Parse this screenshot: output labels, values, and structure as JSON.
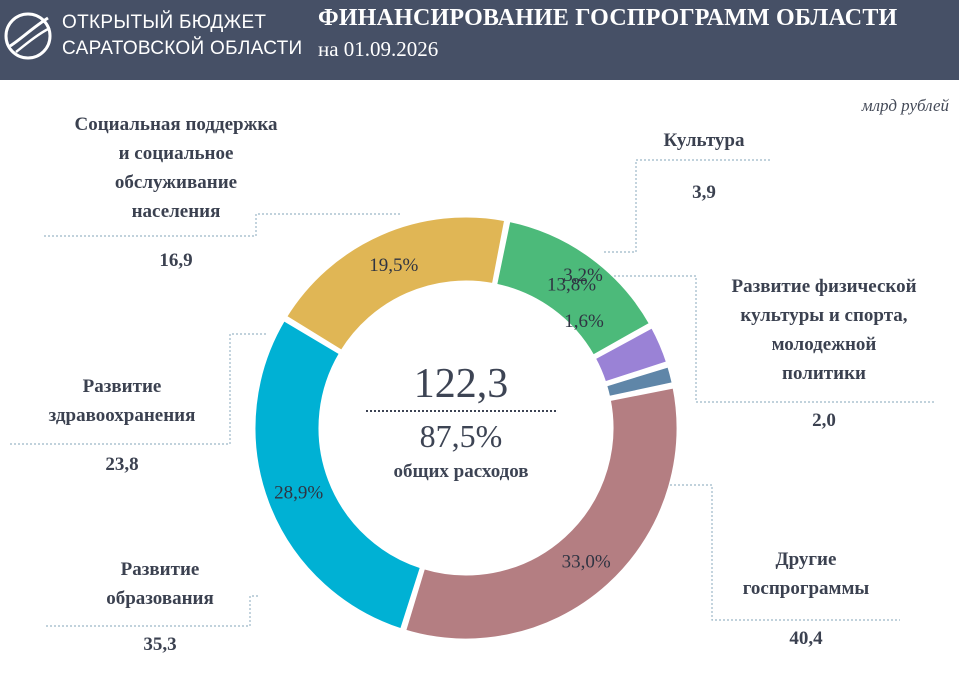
{
  "header": {
    "org_line1": "ОТКРЫТЫЙ БЮДЖЕТ",
    "org_line2": "САРАТОВСКОЙ ОБЛАСТИ",
    "title": "ФИНАНСИРОВАНИЕ ГОСПРОГРАММ ОБЛАСТИ",
    "date": "на 01.09.2026"
  },
  "units": "млрд рублей",
  "center": {
    "total": "122,3",
    "share": "87,5%",
    "caption": "общих расходов"
  },
  "colors": {
    "header_bg": "#465066",
    "leader": "#9cb8c8"
  },
  "chart_data": {
    "type": "donut",
    "units": "млрд рублей",
    "slices": [
      {
        "label": [
          "Культура"
        ],
        "value": 3.9,
        "value_text": "3,9",
        "pct_text": "3,2%",
        "color": "#9a82d6"
      },
      {
        "label": [
          "Развитие физической",
          "культуры и спорта,",
          "молодежной",
          "политики"
        ],
        "value": 2.0,
        "value_text": "2,0",
        "pct_text": "1,6%",
        "color": "#5f86a8"
      },
      {
        "label": [
          "Другие",
          "госпрограммы"
        ],
        "value": 40.4,
        "value_text": "40,4",
        "pct_text": "33,0%",
        "color": "#b47e82"
      },
      {
        "label": [
          "Развитие",
          "образования"
        ],
        "value": 35.3,
        "value_text": "35,3",
        "pct_text": "28,9%",
        "color": "#00b1d4"
      },
      {
        "label": [
          "Развитие",
          "здравоохранения"
        ],
        "value": 23.8,
        "value_text": "23,8",
        "pct_text": "19,5%",
        "color": "#e0b655"
      },
      {
        "label": [
          "Социальная поддержка",
          "и социальное",
          "обслуживание",
          "населения"
        ],
        "value": 16.9,
        "value_text": "16,9",
        "pct_text": "13,8%",
        "color": "#4cba7a"
      }
    ]
  }
}
